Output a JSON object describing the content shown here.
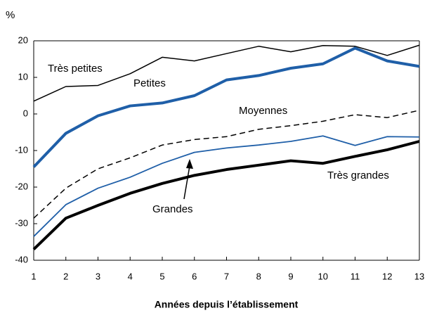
{
  "chart_data": {
    "type": "line",
    "y_axis_label": "%",
    "x_axis_label": "Années depuis l’établissement",
    "x": [
      1,
      2,
      3,
      4,
      5,
      6,
      7,
      8,
      9,
      10,
      11,
      12,
      13
    ],
    "xlim": [
      1,
      13
    ],
    "xticks": [
      1,
      2,
      3,
      4,
      5,
      6,
      7,
      8,
      9,
      10,
      11,
      12,
      13
    ],
    "ylim": [
      -40,
      20
    ],
    "yticks": [
      -40,
      -30,
      -20,
      -10,
      0,
      10,
      20
    ],
    "series": [
      {
        "name": "Très petites",
        "color": "#000000",
        "width": 1.5,
        "dashed": false,
        "values": [
          3.5,
          7.5,
          7.8,
          11,
          15.5,
          14.5,
          16.5,
          18.5,
          17,
          18.7,
          18.5,
          16,
          18.8
        ]
      },
      {
        "name": "Petites",
        "color": "#1f5fa8",
        "width": 4,
        "dashed": false,
        "values": [
          -14.5,
          -5.3,
          -0.5,
          2.2,
          3,
          5,
          9.3,
          10.5,
          12.5,
          13.7,
          18,
          14.5,
          13
        ]
      },
      {
        "name": "Moyennes",
        "color": "#000000",
        "width": 1.5,
        "dashed": true,
        "values": [
          -28.5,
          -20.3,
          -15,
          -12,
          -8.5,
          -7,
          -6.2,
          -4.2,
          -3.2,
          -2,
          -0.2,
          -1,
          1
        ]
      },
      {
        "name": "Grandes",
        "color": "#1f5fa8",
        "width": 1.8,
        "dashed": false,
        "values": [
          -33.5,
          -24.8,
          -20.3,
          -17.3,
          -13.5,
          -10.5,
          -9.3,
          -8.5,
          -7.5,
          -6,
          -8.6,
          -6.2,
          -6.3
        ]
      },
      {
        "name": "Très grandes",
        "color": "#000000",
        "width": 4,
        "dashed": false,
        "values": [
          -37,
          -28.5,
          -25,
          -21.7,
          -19,
          -16.8,
          -15.2,
          -14,
          -12.8,
          -13.5,
          -11.6,
          -9.8,
          -7.5
        ]
      }
    ]
  }
}
